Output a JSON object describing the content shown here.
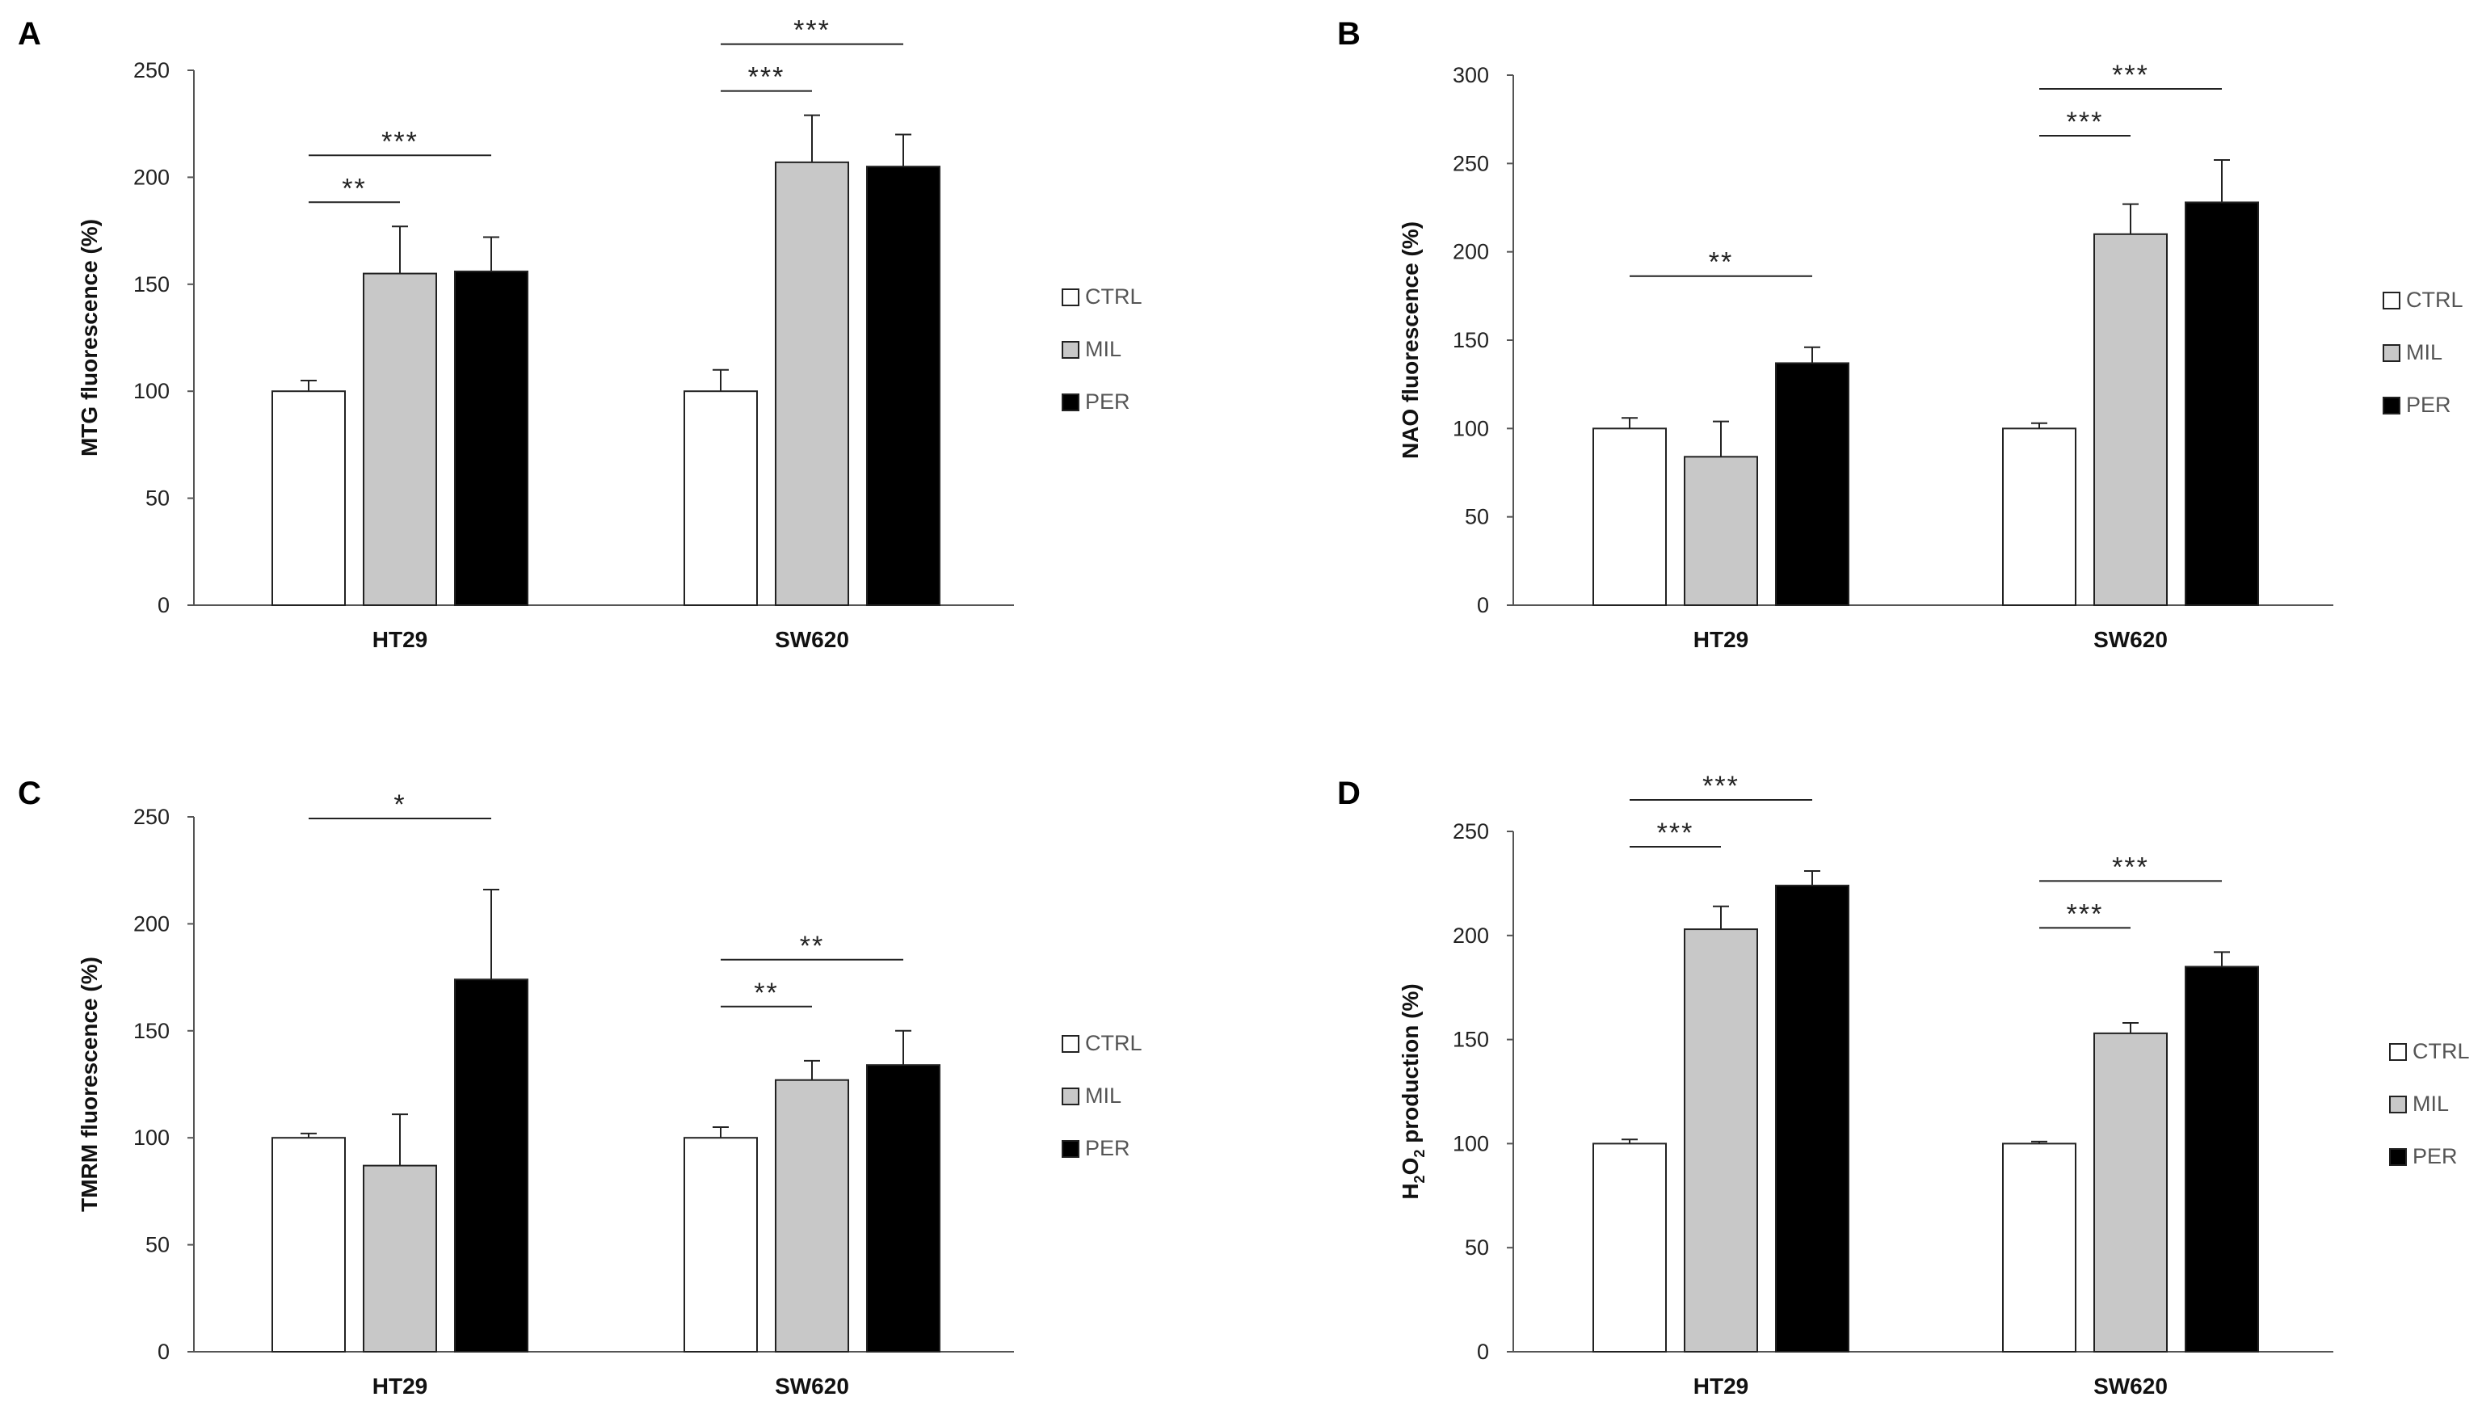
{
  "colors": {
    "CTRL": "#ffffff",
    "MIL": "#c8c8c8",
    "PER": "#000000"
  },
  "chart_data": [
    {
      "type": "bar",
      "panel": "A",
      "categories": [
        "HT29",
        "SW620"
      ],
      "series": [
        {
          "name": "CTRL",
          "values": [
            100,
            100
          ],
          "errors": [
            5,
            10
          ]
        },
        {
          "name": "MIL",
          "values": [
            155,
            207
          ],
          "errors": [
            22,
            22
          ]
        },
        {
          "name": "PER",
          "values": [
            156,
            205
          ],
          "errors": [
            16,
            15
          ]
        }
      ],
      "ylabel": "MTG fluorescence (%)",
      "ylabel_sub": "",
      "ylabel_tail": "",
      "ylim": [
        0,
        250
      ],
      "yticks": [
        0,
        50,
        100,
        150,
        200,
        250
      ],
      "legend": [
        "CTRL",
        "MIL",
        "PER"
      ],
      "legend_position": "right",
      "significance": [
        {
          "category": "HT29",
          "from": "CTRL",
          "to": "MIL",
          "label": "**",
          "level": 1
        },
        {
          "category": "HT29",
          "from": "CTRL",
          "to": "PER",
          "label": "***",
          "level": 2
        },
        {
          "category": "SW620",
          "from": "CTRL",
          "to": "MIL",
          "label": "***",
          "level": 1
        },
        {
          "category": "SW620",
          "from": "CTRL",
          "to": "PER",
          "label": "***",
          "level": 2
        }
      ]
    },
    {
      "type": "bar",
      "panel": "B",
      "categories": [
        "HT29",
        "SW620"
      ],
      "series": [
        {
          "name": "CTRL",
          "values": [
            100,
            100
          ],
          "errors": [
            6,
            3
          ]
        },
        {
          "name": "MIL",
          "values": [
            84,
            210
          ],
          "errors": [
            20,
            17
          ]
        },
        {
          "name": "PER",
          "values": [
            137,
            228
          ],
          "errors": [
            9,
            24
          ]
        }
      ],
      "ylabel": "NAO fluorescence (%)",
      "ylabel_sub": "",
      "ylabel_tail": "",
      "ylim": [
        0,
        300
      ],
      "yticks": [
        0,
        50,
        100,
        150,
        200,
        250,
        300
      ],
      "legend": [
        "CTRL",
        "MIL",
        "PER"
      ],
      "legend_position": "right",
      "significance": [
        {
          "category": "HT29",
          "from": "CTRL",
          "to": "PER",
          "label": "**",
          "level": 2
        },
        {
          "category": "SW620",
          "from": "CTRL",
          "to": "MIL",
          "label": "***",
          "level": 1
        },
        {
          "category": "SW620",
          "from": "CTRL",
          "to": "PER",
          "label": "***",
          "level": 2
        }
      ]
    },
    {
      "type": "bar",
      "panel": "C",
      "categories": [
        "HT29",
        "SW620"
      ],
      "series": [
        {
          "name": "CTRL",
          "values": [
            100,
            100
          ],
          "errors": [
            2,
            5
          ]
        },
        {
          "name": "MIL",
          "values": [
            87,
            127
          ],
          "errors": [
            24,
            9
          ]
        },
        {
          "name": "PER",
          "values": [
            174,
            134
          ],
          "errors": [
            42,
            16
          ]
        }
      ],
      "ylabel": "TMRM fluorescence (%)",
      "ylabel_sub": "",
      "ylabel_tail": "",
      "ylim": [
        0,
        250
      ],
      "yticks": [
        0,
        50,
        100,
        150,
        200,
        250
      ],
      "legend": [
        "CTRL",
        "MIL",
        "PER"
      ],
      "legend_position": "right",
      "significance": [
        {
          "category": "HT29",
          "from": "CTRL",
          "to": "PER",
          "label": "*",
          "level": 2
        },
        {
          "category": "SW620",
          "from": "CTRL",
          "to": "MIL",
          "label": "**",
          "level": 1
        },
        {
          "category": "SW620",
          "from": "CTRL",
          "to": "PER",
          "label": "**",
          "level": 2
        }
      ]
    },
    {
      "type": "bar",
      "panel": "D",
      "categories": [
        "HT29",
        "SW620"
      ],
      "series": [
        {
          "name": "CTRL",
          "values": [
            100,
            100
          ],
          "errors": [
            2,
            1
          ]
        },
        {
          "name": "MIL",
          "values": [
            203,
            153
          ],
          "errors": [
            11,
            5
          ]
        },
        {
          "name": "PER",
          "values": [
            224,
            185
          ],
          "errors": [
            7,
            7
          ]
        }
      ],
      "ylabel": "H",
      "ylabel_sub": "2",
      "ylabel_mid": "O",
      "ylabel_sub2": "2",
      "ylabel_tail": " production (%)",
      "ylim": [
        0,
        250
      ],
      "yticks": [
        0,
        50,
        100,
        150,
        200,
        250
      ],
      "legend": [
        "CTRL",
        "MIL",
        "PER"
      ],
      "legend_position": "right",
      "significance": [
        {
          "category": "HT29",
          "from": "CTRL",
          "to": "MIL",
          "label": "***",
          "level": 1
        },
        {
          "category": "HT29",
          "from": "CTRL",
          "to": "PER",
          "label": "***",
          "level": 2
        },
        {
          "category": "SW620",
          "from": "CTRL",
          "to": "MIL",
          "label": "***",
          "level": 1
        },
        {
          "category": "SW620",
          "from": "CTRL",
          "to": "PER",
          "label": "***",
          "level": 2
        }
      ]
    }
  ]
}
